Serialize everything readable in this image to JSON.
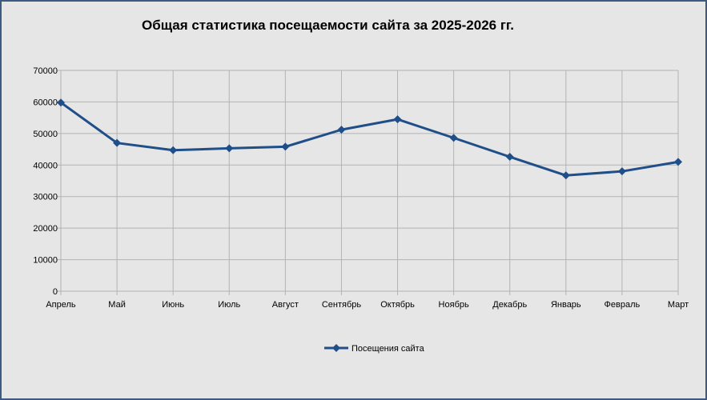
{
  "chart_data": {
    "type": "line",
    "title": "Общая статистика посещаемости сайта за 2025-2026 гг.",
    "xlabel": "",
    "ylabel": "",
    "categories": [
      "Апрель",
      "Май",
      "Июнь",
      "Июль",
      "Август",
      "Сентябрь",
      "Октябрь",
      "Ноябрь",
      "Декабрь",
      "Январь",
      "Февраль",
      "Март"
    ],
    "series": [
      {
        "name": "Посещения сайта",
        "color": "#1f4e89",
        "values": [
          59800,
          47000,
          44700,
          45300,
          45800,
          51200,
          54500,
          48600,
          42600,
          36700,
          38000,
          41000
        ]
      }
    ],
    "ylim": [
      0,
      70000
    ],
    "yticks": [
      "0",
      "10000",
      "20000",
      "30000",
      "40000",
      "50000",
      "60000",
      "70000"
    ],
    "grid": true,
    "legend_position": "bottom"
  }
}
